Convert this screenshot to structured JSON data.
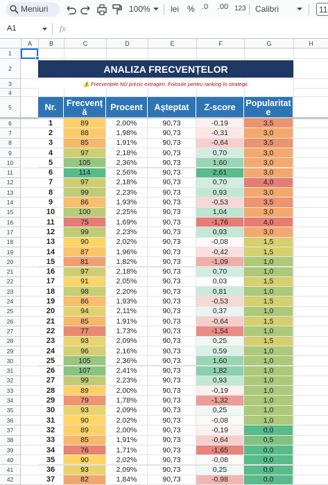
{
  "toolbar": {
    "search": "Meniuri",
    "zoom": "100%",
    "currency": "lei",
    "percent": "%",
    "decrease_decimals": ".0",
    "increase_decimals": ".00",
    "format": "123",
    "font": "Calibri",
    "font_size": "11"
  },
  "name_box": "A1",
  "formula_label": "fx",
  "columns": [
    "A",
    "B",
    "C",
    "D",
    "E",
    "F",
    "G",
    "H"
  ],
  "row_numbers": [
    1,
    2,
    3,
    4,
    5,
    6,
    7,
    8,
    9,
    10,
    11,
    12,
    13,
    14,
    15,
    16,
    17,
    18,
    19,
    20,
    21,
    22,
    23,
    24,
    25,
    26,
    27,
    28,
    29,
    30,
    31,
    32,
    33,
    34,
    35,
    36,
    37,
    38,
    39,
    40,
    41,
    42
  ],
  "sheet": {
    "title": "ANALIZA FRECVENȚELOR",
    "note": "⚠️ Frecvențele NU prezic extrageri. Folosite pentru ranking în strategii.",
    "headers": [
      "Nr.",
      "Frecvență",
      "Procent",
      "Așteptat",
      "Z-score",
      "Popularitate"
    ],
    "rows": [
      [
        "1",
        "89",
        "2,00%",
        "90,73",
        "-0,19",
        "3,5"
      ],
      [
        "2",
        "88",
        "1,98%",
        "90,73",
        "-0,31",
        "3,0"
      ],
      [
        "3",
        "85",
        "1,91%",
        "90,73",
        "-0,64",
        "3,5"
      ],
      [
        "4",
        "97",
        "2,18%",
        "90,73",
        "0,70",
        "3,0"
      ],
      [
        "5",
        "105",
        "2,36%",
        "90,73",
        "1,60",
        "3,0"
      ],
      [
        "6",
        "114",
        "2,56%",
        "90,73",
        "2,61",
        "3,0"
      ],
      [
        "7",
        "97",
        "2,18%",
        "90,73",
        "0,70",
        "4,0"
      ],
      [
        "8",
        "99",
        "2,23%",
        "90,73",
        "0,93",
        "3,0"
      ],
      [
        "9",
        "86",
        "1,93%",
        "90,73",
        "-0,53",
        "3,5"
      ],
      [
        "10",
        "100",
        "2,25%",
        "90,73",
        "1,04",
        "3,0"
      ],
      [
        "11",
        "75",
        "1,69%",
        "90,73",
        "-1,76",
        "4,0"
      ],
      [
        "12",
        "99",
        "2,23%",
        "90,73",
        "0,93",
        "3,0"
      ],
      [
        "13",
        "90",
        "2,02%",
        "90,73",
        "-0,08",
        "1,5"
      ],
      [
        "14",
        "87",
        "1,96%",
        "90,73",
        "-0,42",
        "1,5"
      ],
      [
        "15",
        "81",
        "1,82%",
        "90,73",
        "-1,09",
        "1,0"
      ],
      [
        "16",
        "97",
        "2,18%",
        "90,73",
        "0,70",
        "1,0"
      ],
      [
        "17",
        "91",
        "2,05%",
        "90,73",
        "0,03",
        "1,5"
      ],
      [
        "18",
        "98",
        "2,20%",
        "90,73",
        "0,81",
        "1,0"
      ],
      [
        "19",
        "86",
        "1,93%",
        "90,73",
        "-0,53",
        "1,5"
      ],
      [
        "20",
        "94",
        "2,11%",
        "90,73",
        "0,37",
        "1,0"
      ],
      [
        "21",
        "85",
        "1,91%",
        "90,73",
        "-0,64",
        "1,5"
      ],
      [
        "22",
        "77",
        "1,73%",
        "90,73",
        "-1,54",
        "1,0"
      ],
      [
        "23",
        "93",
        "2,09%",
        "90,73",
        "0,25",
        "1,5"
      ],
      [
        "24",
        "96",
        "2,16%",
        "90,73",
        "0,59",
        "1,0"
      ],
      [
        "25",
        "105",
        "2,36%",
        "90,73",
        "1,60",
        "1,0"
      ],
      [
        "26",
        "107",
        "2,41%",
        "90,73",
        "1,82",
        "1,0"
      ],
      [
        "27",
        "99",
        "2,23%",
        "90,73",
        "0,93",
        "1,0"
      ],
      [
        "28",
        "89",
        "2,00%",
        "90,73",
        "-0,19",
        "1,0"
      ],
      [
        "29",
        "79",
        "1,78%",
        "90,73",
        "-1,32",
        "1,0"
      ],
      [
        "30",
        "93",
        "2,09%",
        "90,73",
        "0,25",
        "1,0"
      ],
      [
        "31",
        "90",
        "2,02%",
        "90,73",
        "-0,08",
        "1,0"
      ],
      [
        "32",
        "89",
        "2,00%",
        "90,73",
        "-0,19",
        "0,0"
      ],
      [
        "33",
        "85",
        "1,91%",
        "90,73",
        "-0,64",
        "0,5"
      ],
      [
        "34",
        "76",
        "1,71%",
        "90,73",
        "-1,65",
        "0,0"
      ],
      [
        "35",
        "90",
        "2,02%",
        "90,73",
        "-0,08",
        "0,0"
      ],
      [
        "36",
        "93",
        "2,09%",
        "90,73",
        "0,25",
        "0,0"
      ],
      [
        "37",
        "82",
        "1,84%",
        "90,73",
        "-0,98",
        "0,0"
      ]
    ]
  }
}
